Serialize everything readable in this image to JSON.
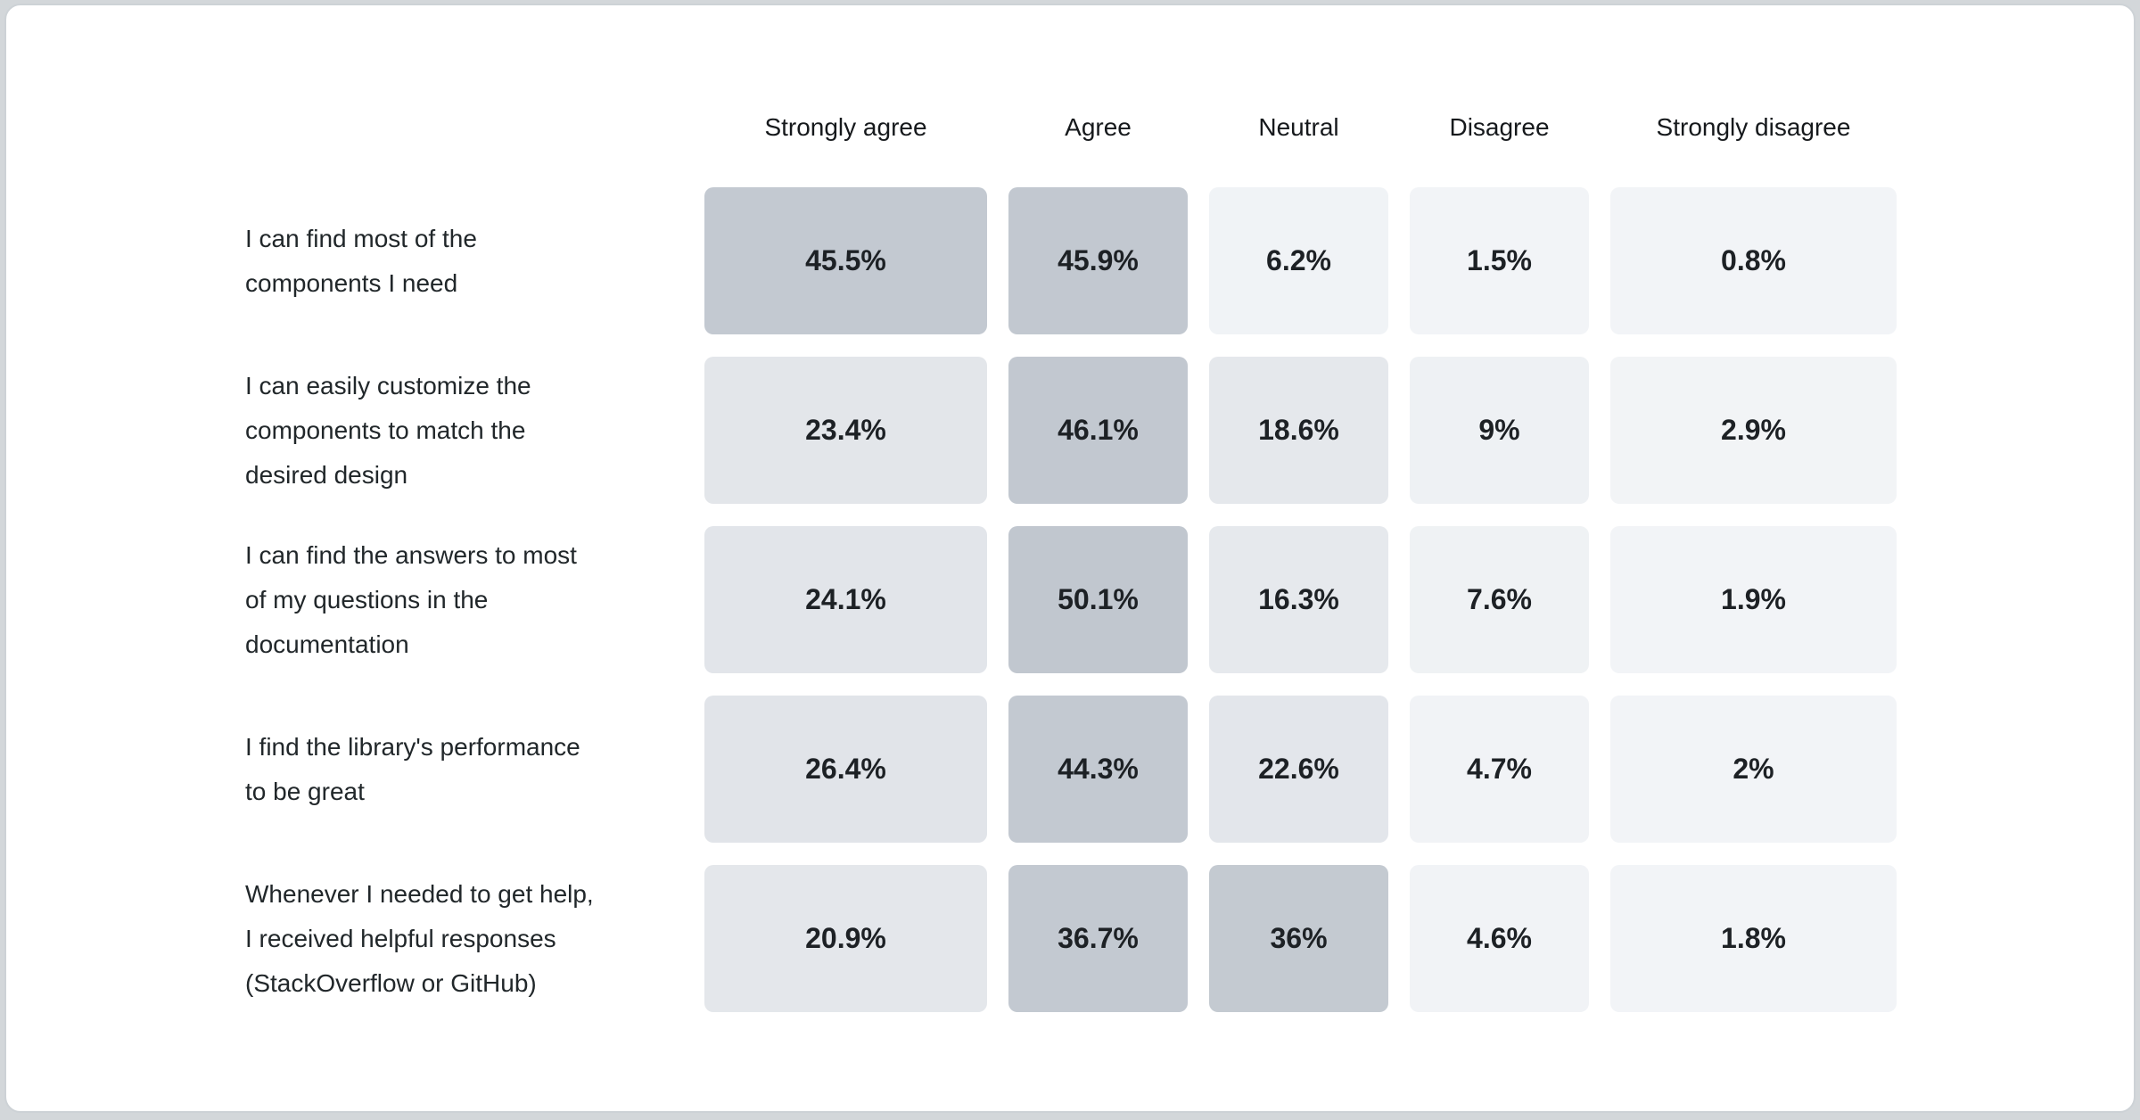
{
  "page": {
    "outer_background": "#d3d7da",
    "card_background": "#ffffff",
    "card_border_color": "#cdd2d6"
  },
  "columns": [
    "Strongly agree",
    "Agree",
    "Neutral",
    "Disagree",
    "Strongly disagree"
  ],
  "rows": [
    {
      "label": "I can find most of the components I need",
      "lines": [
        "I can find most of the",
        "components I need"
      ],
      "cells": [
        {
          "text": "45.5%",
          "value": 45.5,
          "bg": "#c3c9d1"
        },
        {
          "text": "45.9%",
          "value": 45.9,
          "bg": "#c2c8d0"
        },
        {
          "text": "6.2%",
          "value": 6.2,
          "bg": "#f0f3f6"
        },
        {
          "text": "1.5%",
          "value": 1.5,
          "bg": "#f2f4f7"
        },
        {
          "text": "0.8%",
          "value": 0.8,
          "bg": "#f2f4f7"
        }
      ]
    },
    {
      "label": "I can easily customize the components to match the desired design",
      "lines": [
        "I can easily customize the",
        "components to match the",
        "desired design"
      ],
      "cells": [
        {
          "text": "23.4%",
          "value": 23.4,
          "bg": "#e3e6ea"
        },
        {
          "text": "46.1%",
          "value": 46.1,
          "bg": "#c2c8d0"
        },
        {
          "text": "18.6%",
          "value": 18.6,
          "bg": "#e5e8ec"
        },
        {
          "text": "9%",
          "value": 9,
          "bg": "#eef1f4"
        },
        {
          "text": "2.9%",
          "value": 2.9,
          "bg": "#f2f4f6"
        }
      ]
    },
    {
      "label": "I can find the answers to most of my questions in the documentation",
      "lines": [
        "I can find the answers to most",
        "of my questions in the",
        "documentation"
      ],
      "cells": [
        {
          "text": "24.1%",
          "value": 24.1,
          "bg": "#e2e5ea"
        },
        {
          "text": "50.1%",
          "value": 50.1,
          "bg": "#c1c7cf"
        },
        {
          "text": "16.3%",
          "value": 16.3,
          "bg": "#e6e9ed"
        },
        {
          "text": "7.6%",
          "value": 7.6,
          "bg": "#eff2f4"
        },
        {
          "text": "1.9%",
          "value": 1.9,
          "bg": "#f2f4f7"
        }
      ]
    },
    {
      "label": "I find the library's performance to be great",
      "lines": [
        "I find the library's performance",
        "to be great"
      ],
      "cells": [
        {
          "text": "26.4%",
          "value": 26.4,
          "bg": "#e1e4e9"
        },
        {
          "text": "44.3%",
          "value": 44.3,
          "bg": "#c3c9d1"
        },
        {
          "text": "22.6%",
          "value": 22.6,
          "bg": "#e3e6eb"
        },
        {
          "text": "4.7%",
          "value": 4.7,
          "bg": "#f1f3f6"
        },
        {
          "text": "2%",
          "value": 2,
          "bg": "#f2f4f7"
        }
      ]
    },
    {
      "label": "Whenever I needed to get help, I received helpful responses (StackOverflow or GitHub)",
      "lines": [
        "Whenever I needed to get help,",
        "I received helpful responses",
        "(StackOverflow or GitHub)"
      ],
      "cells": [
        {
          "text": "20.9%",
          "value": 20.9,
          "bg": "#e4e7eb"
        },
        {
          "text": "36.7%",
          "value": 36.7,
          "bg": "#c3c9d1"
        },
        {
          "text": "36%",
          "value": 36,
          "bg": "#c4cad1"
        },
        {
          "text": "4.6%",
          "value": 4.6,
          "bg": "#f1f3f6"
        },
        {
          "text": "1.8%",
          "value": 1.8,
          "bg": "#f2f4f7"
        }
      ]
    }
  ],
  "chart_data": {
    "type": "heatmap",
    "title": "",
    "unit": "%",
    "categories": [
      "Strongly agree",
      "Agree",
      "Neutral",
      "Disagree",
      "Strongly disagree"
    ],
    "rows": [
      {
        "label": "I can find most of the components I need",
        "values": [
          45.5,
          45.9,
          6.2,
          1.5,
          0.8
        ]
      },
      {
        "label": "I can easily customize the components to match the desired design",
        "values": [
          23.4,
          46.1,
          18.6,
          9,
          2.9
        ]
      },
      {
        "label": "I can find the answers to most of my questions in the documentation",
        "values": [
          24.1,
          50.1,
          16.3,
          7.6,
          1.9
        ]
      },
      {
        "label": "I find the library's performance to be great",
        "values": [
          26.4,
          44.3,
          22.6,
          4.7,
          2
        ]
      },
      {
        "label": "Whenever I needed to get help, I received helpful responses (StackOverflow or GitHub)",
        "values": [
          20.9,
          36.7,
          36,
          4.6,
          1.8
        ]
      }
    ],
    "color_scale": {
      "low": "#f3f5f7",
      "high": "#c1c7cf"
    },
    "legend_position": "none",
    "grid": false
  }
}
